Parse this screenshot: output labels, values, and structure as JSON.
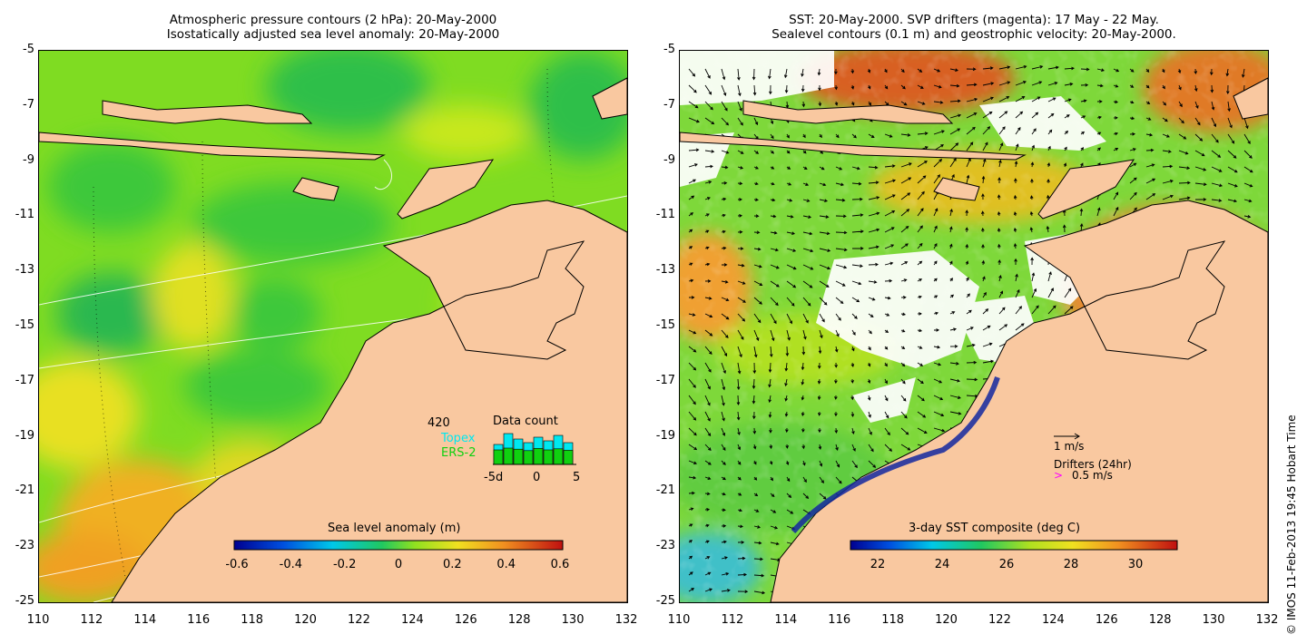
{
  "left_panel": {
    "title_line1": "Atmospheric pressure contours (2 hPa): 20-May-2000",
    "title_line2": "Isostatically adjusted sea level anomaly: 20-May-2000",
    "colorbar": {
      "label": "Sea level anomaly (m)",
      "ticks": [
        "-0.6",
        "-0.4",
        "-0.2",
        "0",
        "0.2",
        "0.4",
        "0.6"
      ]
    },
    "data_count": {
      "title": "Data count",
      "count": "420",
      "series_topex": "Topex",
      "series_ers2": "ERS-2",
      "axis_ticks": [
        "-5d",
        "0",
        "5"
      ],
      "topex_bars": [
        0.55,
        0.85,
        0.7,
        0.6,
        0.75,
        0.65,
        0.8,
        0.6
      ],
      "ers2_bars": [
        0.4,
        0.45,
        0.42,
        0.38,
        0.44,
        0.4,
        0.43,
        0.39
      ]
    }
  },
  "right_panel": {
    "title_line1": "SST: 20-May-2000. SVP drifters (magenta): 17 May - 22 May.",
    "title_line2": "Sealevel contours (0.1 m) and geostrophic velocity: 20-May-2000.",
    "colorbar": {
      "label": "3-day SST composite (deg C)",
      "ticks": [
        "22",
        "24",
        "26",
        "28",
        "30"
      ]
    },
    "legend": {
      "vector_label": "1 m/s",
      "drifters_label": "Drifters (24hr)",
      "drifter_speed": "0.5 m/s"
    }
  },
  "axes": {
    "lat_ticks": [
      "-5",
      "-7",
      "-9",
      "-11",
      "-13",
      "-15",
      "-17",
      "-19",
      "-21",
      "-23",
      "-25"
    ],
    "lon_ticks": [
      "110",
      "112",
      "114",
      "116",
      "118",
      "120",
      "122",
      "124",
      "126",
      "128",
      "130",
      "132"
    ]
  },
  "credit": "© IMOS 11-Feb-2013 19:45 Hobart Time",
  "colors": {
    "land": "#f9c8a0",
    "sea_green": "#5fd428",
    "sea_lime": "#b8e81c",
    "sea_yellow": "#e8e020",
    "sea_orange": "#f0a020",
    "sst_orange": "#e88a30",
    "sst_blue": "#1428a0",
    "topex": "#00e8f0",
    "ers2": "#10d010",
    "drifter": "#ff00ff"
  }
}
